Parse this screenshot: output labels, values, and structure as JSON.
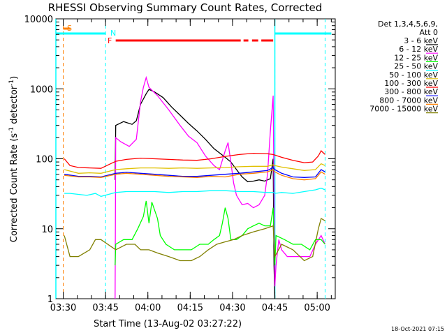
{
  "chart_data": {
    "type": "line",
    "title": "RHESSI Observing Summary Count Rates, Corrected",
    "xlabel": "Start Time (13-Aug-02 03:27:22)",
    "ylabel_main": "Corrected Count Rate (s",
    "ylabel_sup1": "-1",
    "ylabel_mid": " detector",
    "ylabel_sup2": "-1",
    "ylabel_end": ")",
    "y_scale": "log",
    "ylim": [
      1,
      10000
    ],
    "xlim_minutes": [
      0,
      99
    ],
    "x_ticks": [
      {
        "label": "03:30",
        "m": 2.6
      },
      {
        "label": "03:45",
        "m": 17.6
      },
      {
        "label": "04:00",
        "m": 32.6
      },
      {
        "label": "04:15",
        "m": 47.6
      },
      {
        "label": "04:30",
        "m": 62.6
      },
      {
        "label": "04:45",
        "m": 77.6
      },
      {
        "label": "05:00",
        "m": 92.6
      }
    ],
    "y_ticks": [
      {
        "label": "1",
        "v": 1
      },
      {
        "label": "10",
        "v": 10
      },
      {
        "label": "100",
        "v": 100
      },
      {
        "label": "1000",
        "v": 1000
      },
      {
        "label": "10000",
        "v": 10000
      }
    ],
    "legend_header": [
      "Det 1,3,4,5,6,9,",
      "Att 0"
    ],
    "legend_position": "right",
    "timestamp": "18-Oct-2021 07:15",
    "flags": {
      "saa_label": "S",
      "night_label": "N",
      "flare_label": "F",
      "saa_color": "#ff8000",
      "night_color": "#00ffff",
      "flare_color": "#ff0000",
      "night_intervals": [
        [
          0,
          17.6
        ],
        [
          77.6,
          97.6
        ]
      ],
      "flare_segments": [
        [
          21.2,
          65.5
        ],
        [
          66.5,
          68.2
        ],
        [
          69.5,
          71.7
        ],
        [
          72.8,
          77.0
        ]
      ],
      "saa_start": 2.6,
      "dashed_markers": [
        2.6,
        17.6,
        77.6,
        95.4
      ]
    },
    "series": [
      {
        "name": "3 - 6 keV",
        "color": "#000000",
        "points": [
          [
            21,
            50
          ],
          [
            21.2,
            300
          ],
          [
            24,
            340
          ],
          [
            27,
            310
          ],
          [
            28.5,
            350
          ],
          [
            30,
            600
          ],
          [
            32,
            850
          ],
          [
            33,
            980
          ],
          [
            35,
            900
          ],
          [
            38,
            750
          ],
          [
            41,
            550
          ],
          [
            44,
            420
          ],
          [
            47,
            320
          ],
          [
            50,
            250
          ],
          [
            53,
            190
          ],
          [
            56,
            140
          ],
          [
            60,
            105
          ],
          [
            62,
            90
          ],
          [
            64,
            70
          ],
          [
            66,
            55
          ],
          [
            68,
            47
          ],
          [
            70,
            48
          ],
          [
            72,
            50
          ],
          [
            74,
            48
          ],
          [
            76,
            52
          ],
          [
            77,
            100
          ],
          [
            77.3,
            3
          ],
          [
            77.6,
            1
          ]
        ]
      },
      {
        "name": "6 - 12 keV",
        "color": "#ff00ff",
        "points": [
          [
            21,
            1
          ],
          [
            21.2,
            200
          ],
          [
            23,
            175
          ],
          [
            26,
            150
          ],
          [
            28.5,
            190
          ],
          [
            30,
            650
          ],
          [
            31,
            1050
          ],
          [
            32,
            1450
          ],
          [
            33,
            1050
          ],
          [
            36,
            800
          ],
          [
            40,
            500
          ],
          [
            44,
            300
          ],
          [
            47,
            210
          ],
          [
            50,
            170
          ],
          [
            53,
            110
          ],
          [
            56,
            80
          ],
          [
            58,
            70
          ],
          [
            60,
            130
          ],
          [
            61,
            170
          ],
          [
            62,
            90
          ],
          [
            63,
            45
          ],
          [
            64,
            30
          ],
          [
            66,
            22
          ],
          [
            68,
            23
          ],
          [
            70,
            20
          ],
          [
            72,
            22
          ],
          [
            74,
            30
          ],
          [
            75,
            60
          ],
          [
            76,
            250
          ],
          [
            77,
            800
          ],
          [
            77.6,
            1.5
          ],
          [
            78,
            3
          ],
          [
            79,
            7
          ],
          [
            80,
            5
          ],
          [
            82,
            4
          ],
          [
            85,
            4
          ],
          [
            88,
            4
          ],
          [
            90,
            4
          ],
          [
            92,
            6
          ],
          [
            94,
            8
          ],
          [
            95.4,
            6
          ]
        ]
      },
      {
        "name": "12 - 25 keV",
        "color": "#00ff00",
        "points": [
          [
            21,
            3
          ],
          [
            21.2,
            6
          ],
          [
            24,
            7
          ],
          [
            27,
            7
          ],
          [
            29,
            10
          ],
          [
            31,
            15
          ],
          [
            32,
            25
          ],
          [
            33,
            12
          ],
          [
            34,
            24
          ],
          [
            36,
            14
          ],
          [
            37,
            8
          ],
          [
            39,
            6
          ],
          [
            42,
            5
          ],
          [
            45,
            5
          ],
          [
            48,
            5
          ],
          [
            51,
            6
          ],
          [
            54,
            6
          ],
          [
            56,
            7
          ],
          [
            58,
            8
          ],
          [
            59,
            12
          ],
          [
            60,
            20
          ],
          [
            61,
            14
          ],
          [
            62,
            7
          ],
          [
            64,
            7
          ],
          [
            66,
            8
          ],
          [
            68,
            10
          ],
          [
            70,
            11
          ],
          [
            72,
            12
          ],
          [
            74,
            11
          ],
          [
            76,
            11
          ],
          [
            77,
            20
          ],
          [
            77.6,
            3
          ],
          [
            78,
            8
          ],
          [
            81,
            7
          ],
          [
            84,
            6
          ],
          [
            87,
            6
          ],
          [
            90,
            5
          ],
          [
            92,
            7
          ],
          [
            94,
            7
          ],
          [
            95.4,
            6
          ]
        ]
      },
      {
        "name": "25 - 50 keV",
        "color": "#00ffff",
        "points": [
          [
            3,
            32
          ],
          [
            5,
            32
          ],
          [
            8,
            31
          ],
          [
            11,
            30
          ],
          [
            14,
            32
          ],
          [
            16,
            29
          ],
          [
            21.2,
            33
          ],
          [
            25,
            34
          ],
          [
            30,
            34
          ],
          [
            35,
            34
          ],
          [
            40,
            33
          ],
          [
            45,
            34
          ],
          [
            50,
            34
          ],
          [
            55,
            35
          ],
          [
            60,
            35
          ],
          [
            65,
            34
          ],
          [
            70,
            34
          ],
          [
            75,
            33
          ],
          [
            77,
            33
          ],
          [
            77.6,
            32
          ],
          [
            80,
            33
          ],
          [
            84,
            32
          ],
          [
            88,
            34
          ],
          [
            92,
            36
          ],
          [
            94,
            38
          ],
          [
            95.4,
            36
          ]
        ]
      },
      {
        "name": "50 - 100 keV",
        "color": "#e0c000",
        "points": [
          [
            3,
            70
          ],
          [
            8,
            62
          ],
          [
            12,
            63
          ],
          [
            16,
            62
          ],
          [
            21.2,
            70
          ],
          [
            25,
            72
          ],
          [
            30,
            74
          ],
          [
            35,
            74
          ],
          [
            40,
            73
          ],
          [
            45,
            74
          ],
          [
            50,
            73
          ],
          [
            55,
            74
          ],
          [
            60,
            75
          ],
          [
            65,
            77
          ],
          [
            70,
            78
          ],
          [
            75,
            78
          ],
          [
            77,
            82
          ],
          [
            77.6,
            80
          ],
          [
            80,
            76
          ],
          [
            84,
            72
          ],
          [
            88,
            68
          ],
          [
            92,
            70
          ],
          [
            94,
            85
          ],
          [
            95.4,
            80
          ]
        ]
      },
      {
        "name": "100 - 300 keV",
        "color": "#ff0000",
        "points": [
          [
            3,
            100
          ],
          [
            5,
            80
          ],
          [
            8,
            75
          ],
          [
            12,
            74
          ],
          [
            16,
            73
          ],
          [
            21.2,
            92
          ],
          [
            25,
            98
          ],
          [
            30,
            102
          ],
          [
            35,
            100
          ],
          [
            40,
            98
          ],
          [
            45,
            96
          ],
          [
            50,
            95
          ],
          [
            55,
            100
          ],
          [
            60,
            108
          ],
          [
            65,
            115
          ],
          [
            70,
            120
          ],
          [
            75,
            118
          ],
          [
            77,
            115
          ],
          [
            80,
            105
          ],
          [
            84,
            95
          ],
          [
            88,
            88
          ],
          [
            91,
            90
          ],
          [
            93,
            110
          ],
          [
            94,
            130
          ],
          [
            95.4,
            115
          ]
        ]
      },
      {
        "name": "300 - 800 keV",
        "color": "#0000ff",
        "points": [
          [
            3,
            60
          ],
          [
            8,
            56
          ],
          [
            12,
            56
          ],
          [
            16,
            55
          ],
          [
            21.2,
            62
          ],
          [
            25,
            64
          ],
          [
            30,
            62
          ],
          [
            35,
            60
          ],
          [
            40,
            58
          ],
          [
            45,
            56
          ],
          [
            50,
            56
          ],
          [
            55,
            58
          ],
          [
            60,
            60
          ],
          [
            65,
            62
          ],
          [
            70,
            65
          ],
          [
            75,
            68
          ],
          [
            77,
            75
          ],
          [
            77.6,
            70
          ],
          [
            80,
            62
          ],
          [
            84,
            55
          ],
          [
            88,
            54
          ],
          [
            92,
            55
          ],
          [
            94,
            70
          ],
          [
            95.4,
            65
          ]
        ]
      },
      {
        "name": "800 - 7000 keV",
        "color": "#ff8000",
        "points": [
          [
            3,
            58
          ],
          [
            8,
            55
          ],
          [
            12,
            55
          ],
          [
            16,
            54
          ],
          [
            21.2,
            60
          ],
          [
            25,
            62
          ],
          [
            30,
            60
          ],
          [
            35,
            58
          ],
          [
            40,
            56
          ],
          [
            45,
            55
          ],
          [
            50,
            54
          ],
          [
            55,
            56
          ],
          [
            60,
            55
          ],
          [
            65,
            60
          ],
          [
            70,
            62
          ],
          [
            75,
            65
          ],
          [
            77,
            70
          ],
          [
            77.6,
            65
          ],
          [
            80,
            58
          ],
          [
            84,
            52
          ],
          [
            88,
            50
          ],
          [
            92,
            52
          ],
          [
            94,
            65
          ],
          [
            95.4,
            60
          ]
        ]
      },
      {
        "name": "7000 - 15000 keV",
        "color": "#808000",
        "points": [
          [
            3,
            8
          ],
          [
            5,
            4
          ],
          [
            8,
            4
          ],
          [
            12,
            5
          ],
          [
            14,
            7
          ],
          [
            16,
            7
          ],
          [
            21.2,
            5
          ],
          [
            25,
            6
          ],
          [
            28,
            6
          ],
          [
            30,
            5
          ],
          [
            33,
            5
          ],
          [
            36,
            4.5
          ],
          [
            40,
            4
          ],
          [
            44,
            3.5
          ],
          [
            48,
            3.5
          ],
          [
            51,
            4
          ],
          [
            54,
            5
          ],
          [
            57,
            6
          ],
          [
            60,
            6.5
          ],
          [
            63,
            7
          ],
          [
            66,
            8
          ],
          [
            70,
            9
          ],
          [
            74,
            10
          ],
          [
            77,
            11
          ],
          [
            77.6,
            4
          ],
          [
            80,
            6
          ],
          [
            84,
            5
          ],
          [
            88,
            3.5
          ],
          [
            91,
            4
          ],
          [
            93,
            10
          ],
          [
            94,
            14
          ],
          [
            95.4,
            13
          ]
        ]
      }
    ]
  }
}
